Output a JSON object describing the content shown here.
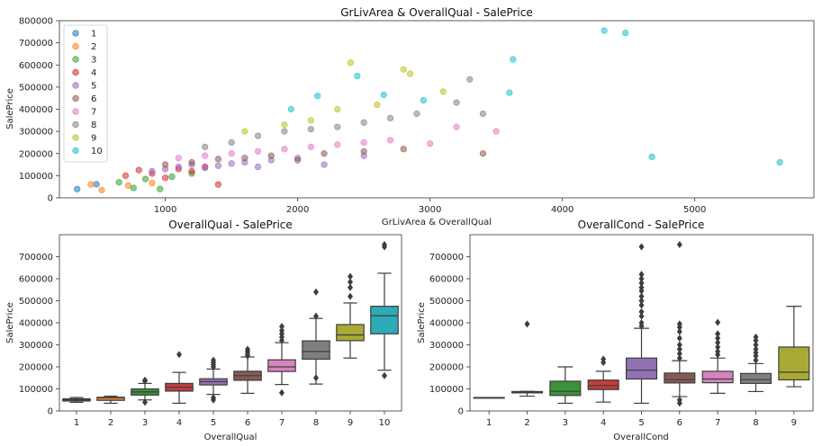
{
  "chart_data": [
    {
      "type": "scatter",
      "title": "GrLivArea & OverallQual - SalePrice",
      "xlabel": "GrLivArea & OverallQual",
      "ylabel": "SalePrice",
      "xlim": [
        200,
        5900
      ],
      "ylim": [
        0,
        800000
      ],
      "xticks": [
        "1000",
        "2000",
        "3000",
        "4000",
        "5000"
      ],
      "yticks": [
        "0",
        "100000",
        "200000",
        "300000",
        "400000",
        "500000",
        "600000",
        "700000",
        "800000"
      ],
      "legend_position": "top-left",
      "series": [
        {
          "name": "1",
          "color": "#1f77b4",
          "points": [
            [
              334,
              39300
            ],
            [
              480,
              61000
            ]
          ]
        },
        {
          "name": "2",
          "color": "#ff7f0e",
          "points": [
            [
              438,
              60000
            ],
            [
              520,
              35000
            ],
            [
              720,
              55000
            ],
            [
              900,
              67000
            ]
          ]
        },
        {
          "name": "3",
          "color": "#2ca02c",
          "points": [
            [
              650,
              70000
            ],
            [
              760,
              45000
            ],
            [
              850,
              85000
            ],
            [
              960,
              40000
            ],
            [
              1050,
              95000
            ],
            [
              1200,
              110000
            ]
          ]
        },
        {
          "name": "4",
          "color": "#d62728",
          "points": [
            [
              700,
              100000
            ],
            [
              800,
              125000
            ],
            [
              900,
              110000
            ],
            [
              1000,
              90000
            ],
            [
              1100,
              130000
            ],
            [
              1200,
              120000
            ],
            [
              1300,
              140000
            ],
            [
              1400,
              60000
            ]
          ]
        },
        {
          "name": "5",
          "color": "#9467bd",
          "points": [
            [
              900,
              120000
            ],
            [
              1000,
              130000
            ],
            [
              1100,
              140000
            ],
            [
              1200,
              150000
            ],
            [
              1300,
              135000
            ],
            [
              1400,
              145000
            ],
            [
              1500,
              155000
            ],
            [
              1600,
              160000
            ],
            [
              1700,
              140000
            ],
            [
              1800,
              170000
            ],
            [
              2000,
              180000
            ],
            [
              2200,
              150000
            ],
            [
              2500,
              190000
            ]
          ]
        },
        {
          "name": "6",
          "color": "#8c564b",
          "points": [
            [
              1000,
              150000
            ],
            [
              1200,
              160000
            ],
            [
              1400,
              175000
            ],
            [
              1600,
              180000
            ],
            [
              1800,
              190000
            ],
            [
              2000,
              170000
            ],
            [
              2200,
              200000
            ],
            [
              2500,
              210000
            ],
            [
              2800,
              220000
            ],
            [
              3400,
              200000
            ]
          ]
        },
        {
          "name": "7",
          "color": "#e377c2",
          "points": [
            [
              1100,
              180000
            ],
            [
              1300,
              190000
            ],
            [
              1500,
              200000
            ],
            [
              1700,
              210000
            ],
            [
              1900,
              220000
            ],
            [
              2100,
              230000
            ],
            [
              2300,
              240000
            ],
            [
              2500,
              250000
            ],
            [
              2700,
              260000
            ],
            [
              3000,
              245000
            ],
            [
              3200,
              320000
            ],
            [
              3500,
              300000
            ]
          ]
        },
        {
          "name": "8",
          "color": "#7f7f7f",
          "points": [
            [
              1300,
              230000
            ],
            [
              1500,
              250000
            ],
            [
              1700,
              280000
            ],
            [
              1900,
              300000
            ],
            [
              2100,
              310000
            ],
            [
              2300,
              320000
            ],
            [
              2500,
              340000
            ],
            [
              2700,
              360000
            ],
            [
              2900,
              380000
            ],
            [
              3200,
              430000
            ],
            [
              3300,
              535000
            ],
            [
              3400,
              380000
            ]
          ]
        },
        {
          "name": "9",
          "color": "#bcbd22",
          "points": [
            [
              1600,
              300000
            ],
            [
              1900,
              330000
            ],
            [
              2100,
              350000
            ],
            [
              2300,
              400000
            ],
            [
              2400,
              610000
            ],
            [
              2600,
              420000
            ],
            [
              2800,
              580000
            ],
            [
              2850,
              560000
            ],
            [
              3100,
              480000
            ]
          ]
        },
        {
          "name": "10",
          "color": "#17becf",
          "points": [
            [
              1950,
              400000
            ],
            [
              2150,
              460000
            ],
            [
              2450,
              550000
            ],
            [
              2650,
              465000
            ],
            [
              2950,
              440000
            ],
            [
              3600,
              475000
            ],
            [
              3627,
              625000
            ],
            [
              4316,
              755000
            ],
            [
              4476,
              745000
            ],
            [
              4676,
              185000
            ],
            [
              5642,
              160000
            ]
          ]
        }
      ]
    },
    {
      "type": "box",
      "title": "OverallQual - SalePrice",
      "xlabel": "OverallQual",
      "ylabel": "SalePrice",
      "ylim": [
        0,
        800000
      ],
      "yticks": [
        "0",
        "100000",
        "200000",
        "300000",
        "400000",
        "500000",
        "600000",
        "700000"
      ],
      "categories": [
        "1",
        "2",
        "3",
        "4",
        "5",
        "6",
        "7",
        "8",
        "9",
        "10"
      ],
      "boxes": [
        {
          "min": 39300,
          "q1": 45000,
          "median": 50150,
          "q3": 55000,
          "max": 61000,
          "color": "#3274a1",
          "outliers": []
        },
        {
          "min": 35000,
          "q1": 48000,
          "median": 60000,
          "q3": 62000,
          "max": 67000,
          "color": "#e1812c",
          "outliers": []
        },
        {
          "min": 50000,
          "q1": 72000,
          "median": 86250,
          "q3": 100000,
          "max": 125000,
          "color": "#3a923a",
          "outliers": [
            39300,
            135000,
            140000
          ]
        },
        {
          "min": 35000,
          "q1": 90000,
          "median": 108000,
          "q3": 125000,
          "max": 175000,
          "color": "#c03d3e",
          "outliers": [
            256000
          ]
        },
        {
          "min": 75000,
          "q1": 118000,
          "median": 133000,
          "q3": 146000,
          "max": 190000,
          "color": "#9372b2",
          "outliers": [
            50000,
            60000,
            200000,
            210000,
            220000,
            230000
          ]
        },
        {
          "min": 80000,
          "q1": 139000,
          "median": 160000,
          "q3": 180000,
          "max": 245000,
          "color": "#845b53",
          "outliers": [
            250000,
            260000,
            270000,
            280000
          ]
        },
        {
          "min": 120000,
          "q1": 179000,
          "median": 200000,
          "q3": 232000,
          "max": 310000,
          "color": "#d684bd",
          "outliers": [
            82500,
            320000,
            335000,
            350000,
            365000,
            383000
          ]
        },
        {
          "min": 122000,
          "q1": 235000,
          "median": 270000,
          "q3": 318000,
          "max": 420000,
          "color": "#7f7f7f",
          "outliers": [
            150000,
            430000,
            540000
          ]
        },
        {
          "min": 240000,
          "q1": 319000,
          "median": 345000,
          "q3": 392000,
          "max": 490000,
          "color": "#a9aa35",
          "outliers": [
            520000,
            560000,
            585000,
            610000
          ]
        },
        {
          "min": 184750,
          "q1": 350000,
          "median": 432000,
          "q3": 475000,
          "max": 625000,
          "color": "#2eabb8",
          "outliers": [
            160000,
            745000,
            755000
          ]
        }
      ]
    },
    {
      "type": "box",
      "title": "OverallCond - SalePrice",
      "xlabel": "OverallCond",
      "ylabel": "SalePrice",
      "ylim": [
        0,
        800000
      ],
      "yticks": [
        "0",
        "100000",
        "200000",
        "300000",
        "400000",
        "500000",
        "600000",
        "700000"
      ],
      "categories": [
        "1",
        "2",
        "3",
        "4",
        "5",
        "6",
        "7",
        "8",
        "9"
      ],
      "boxes": [
        {
          "min": 61000,
          "q1": 61000,
          "median": 61000,
          "q3": 61000,
          "max": 61000,
          "color": "#3274a1",
          "outliers": []
        },
        {
          "min": 67000,
          "q1": 82000,
          "median": 85000,
          "q3": 88000,
          "max": 89000,
          "color": "#e1812c",
          "outliers": [
            394432
          ]
        },
        {
          "min": 35000,
          "q1": 70000,
          "median": 89000,
          "q3": 135000,
          "max": 200000,
          "color": "#3a923a",
          "outliers": []
        },
        {
          "min": 40000,
          "q1": 97000,
          "median": 115000,
          "q3": 140000,
          "max": 180000,
          "color": "#c03d3e",
          "outliers": [
            220000,
            235000
          ]
        },
        {
          "min": 35000,
          "q1": 145000,
          "median": 185000,
          "q3": 240000,
          "max": 375000,
          "color": "#9372b2",
          "outliers": [
            385000,
            400000,
            430000,
            450000,
            480000,
            500000,
            520000,
            545000,
            560000,
            580000,
            600000,
            620000,
            745000
          ]
        },
        {
          "min": 65000,
          "q1": 127000,
          "median": 142000,
          "q3": 172000,
          "max": 228000,
          "color": "#845b53",
          "outliers": [
            35000,
            50000,
            240000,
            260000,
            280000,
            300000,
            330000,
            360000,
            380000,
            395000,
            755000
          ]
        },
        {
          "min": 80000,
          "q1": 128000,
          "median": 145000,
          "q3": 180000,
          "max": 240000,
          "color": "#d684bd",
          "outliers": [
            255000,
            270000,
            290000,
            310000,
            330000,
            350000,
            402000
          ]
        },
        {
          "min": 88000,
          "q1": 125000,
          "median": 142000,
          "q3": 170000,
          "max": 215000,
          "color": "#7f7f7f",
          "outliers": [
            230000,
            250000,
            265000,
            280000,
            300000,
            320000,
            335000
          ]
        },
        {
          "min": 110000,
          "q1": 141000,
          "median": 176000,
          "q3": 290000,
          "max": 475000,
          "color": "#a9aa35",
          "outliers": []
        }
      ]
    }
  ]
}
